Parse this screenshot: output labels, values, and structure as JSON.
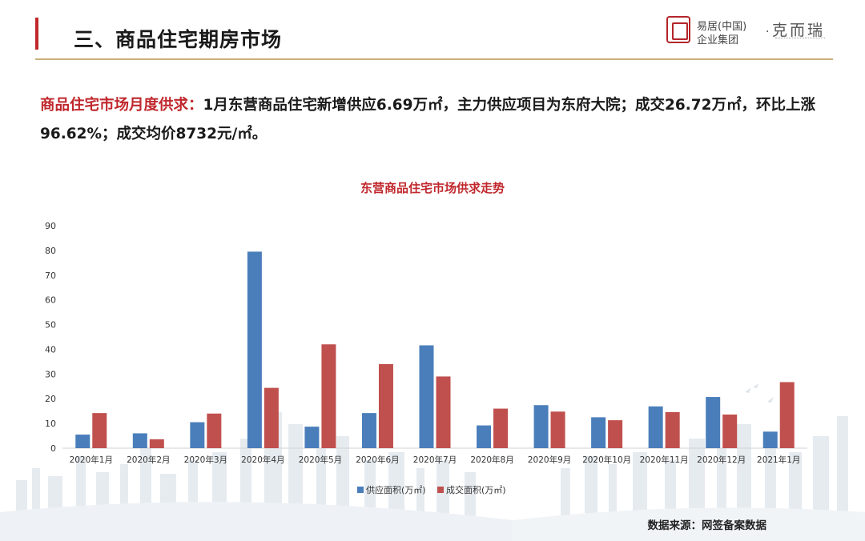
{
  "header": {
    "section_title": "三、商品住宅期房市场",
    "logo": {
      "cn_line1": "易居(中国)",
      "cn_line2": "企业集团",
      "separator": "·",
      "brand": "克而瑞",
      "seal_text": "易居"
    },
    "accent_color": "#c0282d"
  },
  "summary": {
    "label": "商品住宅市场月度供求：",
    "text": "1月东营商品住宅新增供应6.69万㎡，主力供应项目为东府大院；成交26.72万㎡，环比上涨96.62%；成交均价8732元/㎡。"
  },
  "chart_data": {
    "type": "bar",
    "title": "东营商品住宅市场供求走势",
    "categories": [
      "2020年1月",
      "2020年2月",
      "2020年3月",
      "2020年4月",
      "2020年5月",
      "2020年6月",
      "2020年7月",
      "2020年8月",
      "2020年9月",
      "2020年10月",
      "2020年11月",
      "2020年12月",
      "2021年1月"
    ],
    "series": [
      {
        "name": "供应面积(万㎡)",
        "color": "#4a7ebb",
        "values": [
          5.5,
          6.0,
          10.5,
          79.5,
          8.7,
          14.2,
          41.6,
          9.2,
          17.4,
          12.5,
          16.9,
          20.7,
          6.69
        ]
      },
      {
        "name": "成交面积(万㎡)",
        "color": "#c0504d",
        "values": [
          14.2,
          3.6,
          14.0,
          24.4,
          42.0,
          34.0,
          29.0,
          16.0,
          14.8,
          11.3,
          14.6,
          13.6,
          26.72
        ]
      }
    ],
    "ylim": [
      0,
      90
    ],
    "yticks": [
      0,
      10,
      20,
      30,
      40,
      50,
      60,
      70,
      80,
      90
    ],
    "xlabel": "",
    "ylabel": "",
    "legend_position": "bottom",
    "grid": false
  },
  "footer": {
    "source": "数据来源：网签备案数据"
  }
}
